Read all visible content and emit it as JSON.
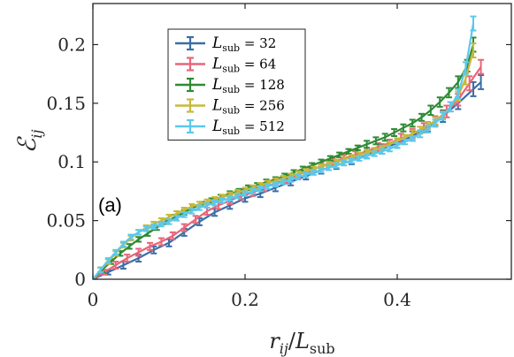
{
  "chart_data": {
    "type": "line",
    "panel_label": "(a)",
    "xlabel": "r_ij / L_sub",
    "ylabel": "E_ij",
    "xlim": [
      0,
      0.55
    ],
    "ylim": [
      0,
      0.235
    ],
    "xticks": [
      0,
      0.2,
      0.4
    ],
    "xtick_labels": [
      "0",
      "0.2",
      "0.4"
    ],
    "yticks": [
      0,
      0.05,
      0.1,
      0.15,
      0.2
    ],
    "ytick_labels": [
      "0",
      "0.05",
      "0.1",
      "0.15",
      "0.2"
    ],
    "grid": false,
    "legend_position": "top-left",
    "series": [
      {
        "name": "L_sub = 32",
        "legend_value": "32",
        "color": "#3A6EA5",
        "x": [
          0,
          0.02,
          0.04,
          0.06,
          0.08,
          0.1,
          0.12,
          0.14,
          0.16,
          0.18,
          0.2,
          0.22,
          0.24,
          0.26,
          0.28,
          0.3,
          0.32,
          0.34,
          0.36,
          0.38,
          0.4,
          0.42,
          0.44,
          0.46,
          0.48,
          0.5,
          0.51
        ],
        "y": [
          0,
          0.006,
          0.012,
          0.018,
          0.025,
          0.031,
          0.04,
          0.049,
          0.057,
          0.063,
          0.069,
          0.073,
          0.078,
          0.083,
          0.088,
          0.093,
          0.097,
          0.101,
          0.106,
          0.111,
          0.116,
          0.122,
          0.13,
          0.139,
          0.15,
          0.162,
          0.168
        ],
        "err": [
          0,
          0.002,
          0.003,
          0.003,
          0.003,
          0.003,
          0.003,
          0.003,
          0.003,
          0.003,
          0.003,
          0.003,
          0.003,
          0.003,
          0.003,
          0.003,
          0.003,
          0.003,
          0.003,
          0.004,
          0.004,
          0.004,
          0.004,
          0.005,
          0.005,
          0.006,
          0.006
        ]
      },
      {
        "name": "L_sub = 64",
        "legend_value": "64",
        "color": "#E8657A",
        "x": [
          0,
          0.015,
          0.03,
          0.045,
          0.06,
          0.075,
          0.09,
          0.105,
          0.12,
          0.135,
          0.15,
          0.165,
          0.18,
          0.195,
          0.21,
          0.225,
          0.24,
          0.255,
          0.27,
          0.285,
          0.3,
          0.315,
          0.33,
          0.345,
          0.36,
          0.375,
          0.39,
          0.405,
          0.42,
          0.435,
          0.45,
          0.465,
          0.48,
          0.495,
          0.51
        ],
        "y": [
          0,
          0.006,
          0.012,
          0.018,
          0.023,
          0.028,
          0.032,
          0.037,
          0.044,
          0.051,
          0.058,
          0.063,
          0.067,
          0.071,
          0.074,
          0.078,
          0.082,
          0.085,
          0.089,
          0.093,
          0.096,
          0.1,
          0.103,
          0.106,
          0.109,
          0.113,
          0.116,
          0.12,
          0.124,
          0.129,
          0.135,
          0.143,
          0.153,
          0.167,
          0.181
        ],
        "err": [
          0,
          0.002,
          0.003,
          0.003,
          0.003,
          0.003,
          0.003,
          0.003,
          0.003,
          0.003,
          0.003,
          0.003,
          0.003,
          0.003,
          0.003,
          0.003,
          0.003,
          0.003,
          0.003,
          0.003,
          0.003,
          0.003,
          0.003,
          0.003,
          0.003,
          0.003,
          0.003,
          0.004,
          0.004,
          0.004,
          0.004,
          0.005,
          0.005,
          0.006,
          0.006
        ]
      },
      {
        "name": "L_sub = 128",
        "legend_value": "128",
        "color": "#2E8B34",
        "x": [
          0,
          0.012,
          0.024,
          0.036,
          0.048,
          0.06,
          0.072,
          0.084,
          0.096,
          0.108,
          0.12,
          0.132,
          0.144,
          0.156,
          0.168,
          0.18,
          0.192,
          0.204,
          0.216,
          0.228,
          0.24,
          0.252,
          0.264,
          0.276,
          0.288,
          0.3,
          0.312,
          0.324,
          0.336,
          0.348,
          0.36,
          0.372,
          0.384,
          0.396,
          0.408,
          0.42,
          0.432,
          0.444,
          0.456,
          0.468,
          0.48,
          0.492,
          0.5
        ],
        "y": [
          0,
          0.008,
          0.015,
          0.022,
          0.028,
          0.034,
          0.039,
          0.044,
          0.049,
          0.053,
          0.057,
          0.061,
          0.064,
          0.067,
          0.07,
          0.073,
          0.075,
          0.078,
          0.08,
          0.083,
          0.085,
          0.088,
          0.091,
          0.094,
          0.097,
          0.1,
          0.103,
          0.106,
          0.109,
          0.112,
          0.115,
          0.118,
          0.121,
          0.125,
          0.129,
          0.133,
          0.138,
          0.144,
          0.151,
          0.159,
          0.168,
          0.182,
          0.2
        ],
        "err": [
          0,
          0.002,
          0.002,
          0.002,
          0.002,
          0.002,
          0.002,
          0.002,
          0.002,
          0.002,
          0.002,
          0.002,
          0.002,
          0.002,
          0.002,
          0.002,
          0.002,
          0.002,
          0.002,
          0.002,
          0.002,
          0.002,
          0.002,
          0.002,
          0.002,
          0.002,
          0.002,
          0.002,
          0.002,
          0.002,
          0.003,
          0.003,
          0.003,
          0.003,
          0.003,
          0.003,
          0.003,
          0.004,
          0.004,
          0.004,
          0.005,
          0.005,
          0.006
        ]
      },
      {
        "name": "L_sub = 256",
        "legend_value": "256",
        "color": "#C9B839",
        "x": [
          0,
          0.01,
          0.02,
          0.03,
          0.04,
          0.05,
          0.06,
          0.07,
          0.08,
          0.09,
          0.1,
          0.11,
          0.12,
          0.13,
          0.14,
          0.15,
          0.16,
          0.17,
          0.18,
          0.19,
          0.2,
          0.21,
          0.22,
          0.23,
          0.24,
          0.25,
          0.26,
          0.27,
          0.28,
          0.29,
          0.3,
          0.31,
          0.32,
          0.33,
          0.34,
          0.35,
          0.36,
          0.37,
          0.38,
          0.39,
          0.4,
          0.41,
          0.42,
          0.43,
          0.44,
          0.45,
          0.46,
          0.47,
          0.48,
          0.49,
          0.5
        ],
        "y": [
          0,
          0.008,
          0.015,
          0.022,
          0.029,
          0.035,
          0.04,
          0.044,
          0.047,
          0.05,
          0.053,
          0.056,
          0.059,
          0.062,
          0.064,
          0.066,
          0.068,
          0.07,
          0.072,
          0.074,
          0.076,
          0.078,
          0.08,
          0.082,
          0.084,
          0.086,
          0.088,
          0.09,
          0.092,
          0.094,
          0.096,
          0.098,
          0.1,
          0.102,
          0.104,
          0.106,
          0.108,
          0.11,
          0.112,
          0.115,
          0.118,
          0.121,
          0.124,
          0.127,
          0.131,
          0.135,
          0.14,
          0.147,
          0.156,
          0.171,
          0.195
        ],
        "err": [
          0,
          0.002,
          0.002,
          0.002,
          0.002,
          0.002,
          0.002,
          0.002,
          0.002,
          0.002,
          0.002,
          0.002,
          0.002,
          0.002,
          0.002,
          0.002,
          0.002,
          0.002,
          0.002,
          0.002,
          0.002,
          0.002,
          0.002,
          0.002,
          0.002,
          0.002,
          0.002,
          0.002,
          0.002,
          0.002,
          0.002,
          0.002,
          0.002,
          0.002,
          0.002,
          0.002,
          0.002,
          0.002,
          0.002,
          0.002,
          0.002,
          0.002,
          0.003,
          0.003,
          0.003,
          0.003,
          0.003,
          0.004,
          0.004,
          0.005,
          0.006
        ]
      },
      {
        "name": "L_sub = 512",
        "legend_value": "512",
        "color": "#5BC8EC",
        "x": [
          0,
          0.01,
          0.02,
          0.03,
          0.04,
          0.05,
          0.06,
          0.07,
          0.08,
          0.09,
          0.1,
          0.11,
          0.12,
          0.13,
          0.14,
          0.15,
          0.16,
          0.17,
          0.18,
          0.19,
          0.2,
          0.21,
          0.22,
          0.23,
          0.24,
          0.25,
          0.26,
          0.27,
          0.28,
          0.29,
          0.3,
          0.31,
          0.32,
          0.33,
          0.34,
          0.35,
          0.36,
          0.37,
          0.38,
          0.39,
          0.4,
          0.41,
          0.42,
          0.43,
          0.44,
          0.45,
          0.46,
          0.47,
          0.48,
          0.49,
          0.5
        ],
        "y": [
          0,
          0.008,
          0.016,
          0.023,
          0.03,
          0.036,
          0.04,
          0.043,
          0.045,
          0.047,
          0.049,
          0.052,
          0.055,
          0.058,
          0.061,
          0.063,
          0.065,
          0.067,
          0.069,
          0.071,
          0.073,
          0.075,
          0.077,
          0.079,
          0.081,
          0.083,
          0.085,
          0.087,
          0.089,
          0.091,
          0.093,
          0.095,
          0.097,
          0.099,
          0.101,
          0.103,
          0.105,
          0.107,
          0.109,
          0.111,
          0.114,
          0.117,
          0.12,
          0.124,
          0.128,
          0.133,
          0.139,
          0.147,
          0.158,
          0.18,
          0.218
        ],
        "err": [
          0,
          0.002,
          0.002,
          0.002,
          0.002,
          0.002,
          0.002,
          0.002,
          0.002,
          0.002,
          0.002,
          0.002,
          0.002,
          0.002,
          0.002,
          0.002,
          0.002,
          0.002,
          0.002,
          0.002,
          0.002,
          0.002,
          0.002,
          0.002,
          0.002,
          0.002,
          0.002,
          0.002,
          0.002,
          0.002,
          0.002,
          0.002,
          0.002,
          0.002,
          0.002,
          0.002,
          0.002,
          0.002,
          0.002,
          0.002,
          0.002,
          0.002,
          0.002,
          0.003,
          0.003,
          0.003,
          0.003,
          0.004,
          0.004,
          0.005,
          0.006
        ]
      }
    ]
  }
}
